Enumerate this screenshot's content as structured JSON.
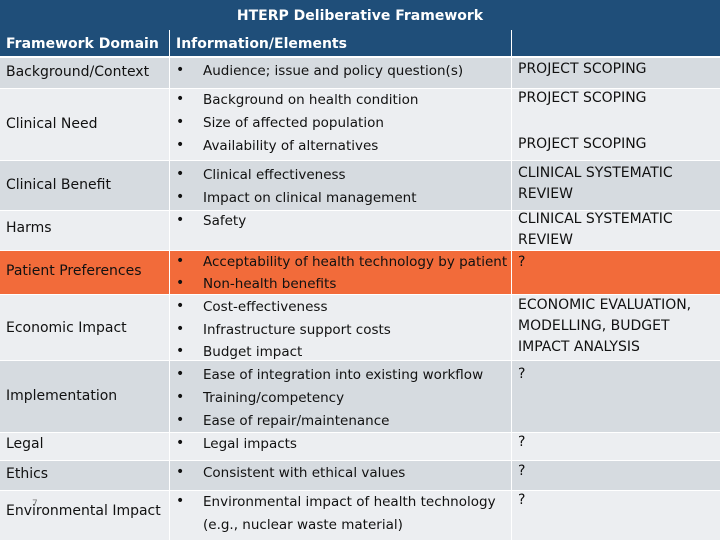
{
  "title": "HTERP Deliberative Framework",
  "headers": {
    "domain": "Framework Domain",
    "info": "Information/Elements",
    "extra": ""
  },
  "domains": {
    "background": "Background/Context",
    "clinical_need": "Clinical Need",
    "clinical_benefit": "Clinical Benefit",
    "harms": "Harms",
    "patient_pref": "Patient Preferences",
    "economic": "Economic Impact",
    "implementation": "Implementation",
    "legal": "Legal",
    "ethics": "Ethics",
    "environmental": "Environmental Impact"
  },
  "bullet_symbol": "•",
  "items": [
    "Audience; issue and policy question(s)",
    "Background on health condition",
    "Size of affected population",
    "Availability of alternatives",
    "Clinical effectiveness",
    "Impact on clinical management",
    "Safety",
    "Acceptability of health technology by patient",
    "Non-health benefits",
    "Cost-effectiveness",
    "Infrastructure support costs",
    "Budget impact",
    "Ease of integration into existing workflow",
    "Training/competency",
    "Ease of repair/maintenance",
    "Legal impacts",
    "Consistent with ethical values",
    "Environmental impact of health technology",
    "(e.g., nuclear waste material)"
  ],
  "right": {
    "r1": "PROJECT SCOPING",
    "r2": "PROJECT SCOPING",
    "r3": "PROJECT SCOPING",
    "r4": "CLINICAL SYSTEMATIC REVIEW",
    "r5": "CLINICAL SYSTEMATIC REVIEW",
    "r6": "?",
    "r7": "ECONOMIC EVALUATION, MODELLING, BUDGET IMPACT ANALYSIS",
    "r8": "?",
    "r9": "?",
    "r10": "?",
    "r11": "?"
  },
  "slide_number": "7",
  "colors": {
    "header": "#1f4e79",
    "highlight": "#f26b3a",
    "band_dark": "#d6dbe0",
    "band_light": "#eceef1"
  }
}
